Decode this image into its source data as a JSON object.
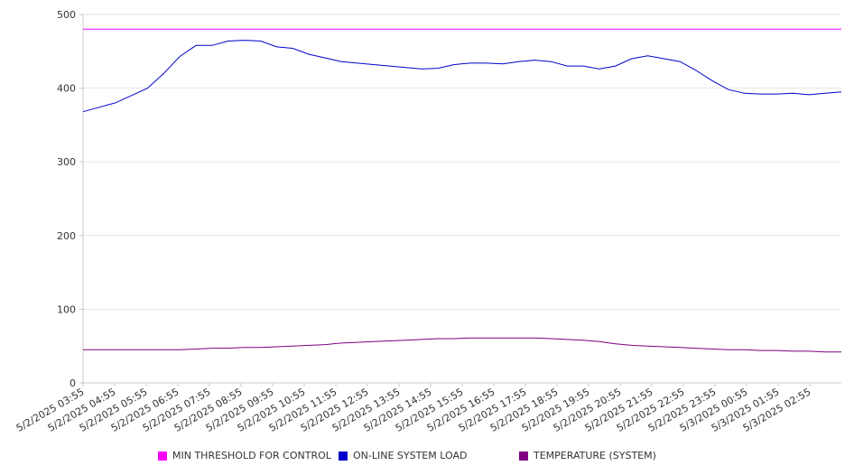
{
  "chart_data": {
    "type": "line",
    "title": "",
    "xlabel": "",
    "ylabel": "",
    "ylim": [
      0,
      500
    ],
    "yticks": [
      0,
      100,
      200,
      300,
      400,
      500
    ],
    "grid": "horizontal",
    "legend_position": "bottom",
    "x_tick_labels": [
      "5/2/2025 03:55",
      "5/2/2025 04:55",
      "5/2/2025 05:55",
      "5/2/2025 06:55",
      "5/2/2025 07:55",
      "5/2/2025 08:55",
      "5/2/2025 09:55",
      "5/2/2025 10:55",
      "5/2/2025 11:55",
      "5/2/2025 12:55",
      "5/2/2025 13:55",
      "5/2/2025 14:55",
      "5/2/2025 15:55",
      "5/2/2025 16:55",
      "5/2/2025 17:55",
      "5/2/2025 18:55",
      "5/2/2025 19:55",
      "5/2/2025 20:55",
      "5/2/2025 21:55",
      "5/2/2025 22:55",
      "5/2/2025 23:55",
      "5/3/2025 00:55",
      "5/3/2025 01:55",
      "5/3/2025 02:55"
    ],
    "x": [
      "5/2/2025 03:55",
      "5/2/2025 04:25",
      "5/2/2025 04:55",
      "5/2/2025 05:25",
      "5/2/2025 05:55",
      "5/2/2025 06:25",
      "5/2/2025 06:55",
      "5/2/2025 07:25",
      "5/2/2025 07:55",
      "5/2/2025 08:25",
      "5/2/2025 08:55",
      "5/2/2025 09:25",
      "5/2/2025 09:55",
      "5/2/2025 10:25",
      "5/2/2025 10:55",
      "5/2/2025 11:25",
      "5/2/2025 11:55",
      "5/2/2025 12:25",
      "5/2/2025 12:55",
      "5/2/2025 13:25",
      "5/2/2025 13:55",
      "5/2/2025 14:25",
      "5/2/2025 14:55",
      "5/2/2025 15:25",
      "5/2/2025 15:55",
      "5/2/2025 16:25",
      "5/2/2025 16:55",
      "5/2/2025 17:25",
      "5/2/2025 17:55",
      "5/2/2025 18:25",
      "5/2/2025 18:55",
      "5/2/2025 19:25",
      "5/2/2025 19:55",
      "5/2/2025 20:25",
      "5/2/2025 20:55",
      "5/2/2025 21:25",
      "5/2/2025 21:55",
      "5/2/2025 22:25",
      "5/2/2025 22:55",
      "5/2/2025 23:25",
      "5/2/2025 23:55",
      "5/3/2025 00:25",
      "5/3/2025 00:55",
      "5/3/2025 01:25",
      "5/3/2025 01:55",
      "5/3/2025 02:25",
      "5/3/2025 02:55",
      "5/3/2025 03:25"
    ],
    "series": [
      {
        "name": "MIN THRESHOLD FOR CONTROL",
        "color": "#ff00ff",
        "values": [
          480,
          480,
          480,
          480,
          480,
          480,
          480,
          480,
          480,
          480,
          480,
          480,
          480,
          480,
          480,
          480,
          480,
          480,
          480,
          480,
          480,
          480,
          480,
          480,
          480,
          480,
          480,
          480,
          480,
          480,
          480,
          480,
          480,
          480,
          480,
          480,
          480,
          480,
          480,
          480,
          480,
          480,
          480,
          480,
          480,
          480,
          480,
          480
        ]
      },
      {
        "name": "ON-LINE SYSTEM LOAD",
        "color": "#0000cc",
        "values": [
          368,
          374,
          380,
          390,
          400,
          420,
          443,
          458,
          458,
          464,
          465,
          464,
          456,
          454,
          446,
          441,
          436,
          434,
          432,
          430,
          428,
          426,
          427,
          432,
          434,
          434,
          433,
          436,
          438,
          436,
          430,
          430,
          426,
          430,
          440,
          444,
          440,
          436,
          424,
          410,
          398,
          393,
          392,
          392,
          393,
          391,
          393,
          395
        ]
      },
      {
        "name": "TEMPERATURE (SYSTEM)",
        "color": "#800080",
        "values": [
          45,
          45,
          45,
          45,
          45,
          45,
          45,
          46,
          47,
          47,
          48,
          48,
          49,
          50,
          51,
          52,
          54,
          55,
          56,
          57,
          58,
          59,
          60,
          60,
          61,
          61,
          61,
          61,
          61,
          60,
          59,
          58,
          56,
          53,
          51,
          50,
          49,
          48,
          47,
          46,
          45,
          45,
          44,
          44,
          43,
          43,
          42,
          42
        ]
      }
    ]
  }
}
